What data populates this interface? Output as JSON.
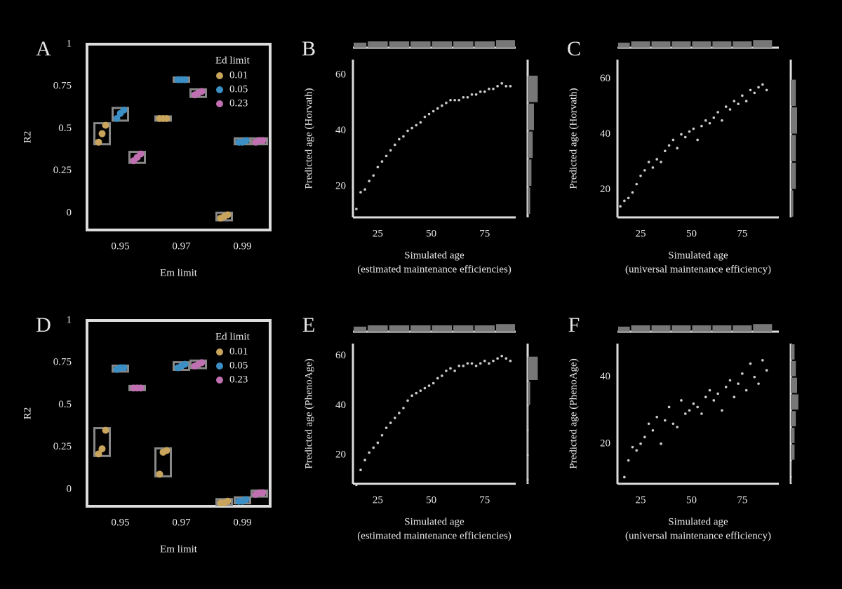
{
  "chart_data": [
    {
      "type": "strip",
      "panel_label": "A",
      "ylabel": "R2",
      "xlabel": "Em limit",
      "categories": [
        "0.95",
        "0.97",
        "0.99"
      ],
      "ylim": [
        -0.1,
        1
      ],
      "yticks": [
        0,
        0.25,
        0.5,
        0.75,
        1
      ],
      "legend_title": "Ed limit",
      "legend": "upper right",
      "series": [
        {
          "name": "0.01",
          "color": "#c9a45c",
          "values": [
            [
              0.42,
              0.47,
              0.52
            ],
            [
              0.56,
              0.56,
              0.56
            ],
            [
              -0.03,
              -0.02,
              -0.01
            ]
          ]
        },
        {
          "name": "0.05",
          "color": "#3b8fc4",
          "values": [
            [
              0.56,
              0.59,
              0.61
            ],
            [
              0.79,
              0.79,
              0.79
            ],
            [
              0.42,
              0.42,
              0.43
            ]
          ]
        },
        {
          "name": "0.23",
          "color": "#c070b0",
          "values": [
            [
              0.31,
              0.33,
              0.35
            ],
            [
              0.7,
              0.71,
              0.72
            ],
            [
              0.42,
              0.43,
              0.43
            ]
          ]
        }
      ]
    },
    {
      "type": "scatter",
      "panel_label": "B",
      "ylabel": "Predicted age (Horvath)",
      "xlabel": [
        "Simulated age",
        "(estimated maintenance efficiencies)"
      ],
      "xlim": [
        13.4,
        89.5
      ],
      "xticks": [
        25,
        50,
        75
      ],
      "ylim": [
        9,
        65.5
      ],
      "yticks": [
        20,
        40,
        60
      ],
      "x": [
        15,
        17,
        19,
        21,
        23,
        25,
        27,
        29,
        31,
        33,
        35,
        37,
        39,
        41,
        43,
        45,
        47,
        49,
        51,
        53,
        55,
        57,
        59,
        61,
        63,
        65,
        67,
        69,
        71,
        73,
        75,
        77,
        79,
        81,
        83,
        85,
        87
      ],
      "y": [
        12,
        18,
        19,
        22,
        24,
        27,
        29,
        31,
        33,
        35,
        37,
        38,
        40,
        41,
        42,
        43,
        45,
        46,
        47,
        48,
        49,
        50,
        51,
        51,
        51,
        52,
        52,
        53,
        53,
        54,
        54,
        55,
        55,
        56,
        57,
        56,
        56
      ],
      "x_hist": {
        "bins": [
          10,
          20,
          30,
          40,
          50,
          60,
          70,
          80,
          90
        ],
        "counts": [
          4,
          5,
          5,
          5,
          5,
          5,
          5,
          6
        ]
      },
      "y_hist": {
        "bins": [
          10,
          20,
          30,
          40,
          50,
          60
        ],
        "counts": [
          2,
          3,
          4,
          5,
          8
        ]
      }
    },
    {
      "type": "scatter",
      "panel_label": "C",
      "ylabel": "Predicted age (Horvath)",
      "xlabel": [
        "Simulated age",
        "(universal maintenance efficiency)"
      ],
      "xlim": [
        13.6,
        93
      ],
      "xticks": [
        25,
        50,
        75
      ],
      "ylim": [
        10,
        67
      ],
      "yticks": [
        20,
        40,
        60
      ],
      "x": [
        15,
        17,
        19,
        21,
        23,
        25,
        27,
        29,
        31,
        33,
        35,
        37,
        39,
        41,
        43,
        45,
        47,
        49,
        51,
        53,
        55,
        57,
        59,
        61,
        63,
        65,
        67,
        69,
        71,
        73,
        75,
        77,
        79,
        81,
        83,
        85,
        87
      ],
      "y": [
        14,
        16,
        17,
        19,
        22,
        25,
        27,
        30,
        28,
        31,
        30,
        34,
        36,
        38,
        35,
        40,
        39,
        41,
        42,
        38,
        43,
        45,
        44,
        46,
        48,
        45,
        50,
        49,
        52,
        51,
        54,
        52,
        56,
        55,
        57,
        58,
        56
      ],
      "x_hist": {
        "bins": [
          10,
          20,
          30,
          40,
          50,
          60,
          70,
          80,
          90
        ],
        "counts": [
          4,
          5,
          5,
          5,
          5,
          5,
          5,
          6
        ]
      },
      "y_hist": {
        "bins": [
          10,
          20,
          30,
          40,
          50,
          60
        ],
        "counts": [
          2,
          4,
          4,
          5,
          4
        ]
      }
    },
    {
      "type": "strip",
      "panel_label": "D",
      "ylabel": "R2",
      "xlabel": "Em limit",
      "categories": [
        "0.95",
        "0.97",
        "0.99"
      ],
      "ylim": [
        -0.1,
        1
      ],
      "yticks": [
        0,
        0.25,
        0.5,
        0.75,
        1
      ],
      "legend_title": "Ed limit",
      "legend": "upper right",
      "series": [
        {
          "name": "0.01",
          "color": "#c9a45c",
          "values": [
            [
              0.21,
              0.24,
              0.35
            ],
            [
              0.09,
              0.22,
              0.23
            ],
            [
              -0.08,
              -0.08,
              -0.07
            ]
          ]
        },
        {
          "name": "0.05",
          "color": "#3b8fc4",
          "values": [
            [
              0.71,
              0.72,
              0.72
            ],
            [
              0.72,
              0.73,
              0.74
            ],
            [
              -0.07,
              -0.07,
              -0.06
            ]
          ]
        },
        {
          "name": "0.23",
          "color": "#c070b0",
          "values": [
            [
              0.6,
              0.6,
              0.6
            ],
            [
              0.73,
              0.74,
              0.75
            ],
            [
              -0.03,
              -0.02,
              -0.02
            ]
          ]
        }
      ]
    },
    {
      "type": "scatter",
      "panel_label": "E",
      "ylabel": "Predicted age (PhenoAge)",
      "xlabel": [
        "Simulated age",
        "(estimated maintenance efficiencies)"
      ],
      "xlim": [
        13.4,
        89.5
      ],
      "xticks": [
        25,
        50,
        75
      ],
      "ylim": [
        8.4,
        65
      ],
      "yticks": [
        20,
        40,
        60
      ],
      "x": [
        15,
        17,
        19,
        21,
        23,
        25,
        27,
        29,
        31,
        33,
        35,
        37,
        39,
        41,
        43,
        45,
        47,
        49,
        51,
        53,
        55,
        57,
        59,
        61,
        63,
        65,
        67,
        69,
        71,
        73,
        75,
        77,
        79,
        81,
        83,
        85,
        87
      ],
      "y": [
        8,
        14,
        18,
        21,
        23,
        25,
        28,
        31,
        33,
        35,
        37,
        39,
        42,
        44,
        45,
        46,
        47,
        48,
        49,
        51,
        52,
        54,
        55,
        54,
        56,
        56,
        57,
        57,
        56,
        57,
        58,
        57,
        58,
        59,
        60,
        59,
        58
      ],
      "x_hist": {
        "bins": [
          10,
          20,
          30,
          40,
          50,
          60,
          70,
          80,
          90
        ],
        "counts": [
          4,
          5,
          5,
          5,
          5,
          5,
          5,
          6
        ]
      },
      "y_hist": {
        "bins": [
          0,
          10,
          20,
          30,
          40,
          50,
          60
        ],
        "counts": [
          1,
          1,
          1,
          1,
          2,
          8
        ]
      }
    },
    {
      "type": "scatter",
      "panel_label": "F",
      "ylabel": "Predicted age (PhenoAge)",
      "xlabel": [
        "Simulated age",
        "(universal maintenance efficiency)"
      ],
      "xlim": [
        13.6,
        93
      ],
      "xticks": [
        25,
        50,
        75
      ],
      "ylim": [
        8,
        50
      ],
      "yticks": [
        20,
        40
      ],
      "x": [
        15,
        17,
        19,
        21,
        23,
        25,
        27,
        29,
        31,
        33,
        35,
        37,
        39,
        41,
        43,
        45,
        47,
        49,
        51,
        53,
        55,
        57,
        59,
        61,
        63,
        65,
        67,
        69,
        71,
        73,
        75,
        77,
        79,
        81,
        83,
        85,
        87
      ],
      "y": [
        8,
        10,
        15,
        19,
        18,
        20,
        22,
        26,
        24,
        28,
        20,
        27,
        31,
        26,
        25,
        33,
        29,
        30,
        32,
        31,
        29,
        34,
        36,
        33,
        35,
        30,
        37,
        39,
        34,
        38,
        41,
        36,
        44,
        40,
        38,
        45,
        42
      ],
      "x_hist": {
        "bins": [
          10,
          20,
          30,
          40,
          50,
          60,
          70,
          80,
          90
        ],
        "counts": [
          4,
          5,
          5,
          5,
          5,
          5,
          5,
          6
        ]
      },
      "y_hist": {
        "bins": [
          5,
          10,
          15,
          20,
          25,
          30,
          35,
          40,
          45,
          50
        ],
        "counts": [
          1,
          1,
          3,
          3,
          4,
          6,
          5,
          4,
          3
        ]
      }
    }
  ]
}
